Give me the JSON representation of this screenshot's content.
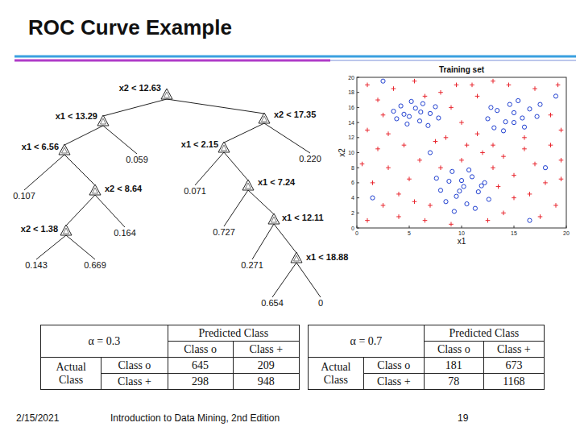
{
  "header": {
    "title": "ROC Curve Example"
  },
  "tree": {
    "split": "x2 < 12.63",
    "left": {
      "split": "x1 < 13.29",
      "left": {
        "split": "x1 < 6.56",
        "left": {
          "value": "0.107"
        },
        "right": {
          "split": "x2 < 8.64",
          "left": {
            "split": "x2 < 1.38",
            "left": {
              "value": "0.143"
            },
            "right": {
              "value": "0.669"
            }
          },
          "right": {
            "value": "0.164"
          }
        }
      },
      "right": {
        "value": "0.059"
      }
    },
    "right": {
      "split": "x2 < 17.35",
      "left": {
        "split": "x1 < 2.15",
        "left": {
          "value": "0.071"
        },
        "right": {
          "split": "x1 < 7.24",
          "left": {
            "value": "0.727"
          },
          "right": {
            "split": "x1 < 12.11",
            "left": {
              "value": "0.271"
            },
            "right": {
              "split": "x1 < 18.88",
              "left": {
                "value": "0.654"
              },
              "right": {
                "value": "0"
              }
            }
          }
        }
      },
      "right": {
        "value": "0.220"
      }
    }
  },
  "chart_data": {
    "type": "scatter",
    "title": "Training set",
    "x_label": "x1",
    "y_label": "x2",
    "xlim": [
      0,
      20
    ],
    "ylim": [
      0,
      20
    ],
    "xticks": [
      0,
      5,
      10,
      15,
      20
    ],
    "yticks": [
      0,
      2,
      4,
      6,
      8,
      10,
      12,
      14,
      16,
      18,
      20
    ],
    "series": [
      {
        "color": "#e8262e",
        "marker": "plus",
        "x": [
          1,
          2.5,
          4,
          5.5,
          6.5,
          1.5,
          3,
          5,
          6,
          2,
          4.5,
          1,
          2,
          1,
          3.5,
          5.5,
          8,
          9.5,
          9,
          10,
          8.5,
          10.5,
          11.5,
          12,
          13,
          14,
          15,
          16,
          17,
          18.5,
          19.5,
          18,
          19,
          17.5,
          15,
          14,
          13.5,
          16.5,
          19.5,
          18.5,
          19.2,
          17,
          13,
          11.5,
          11,
          3,
          7.5,
          8,
          4,
          2.5,
          12.5,
          7,
          0.5,
          6.5,
          10,
          13,
          16,
          19.5,
          9,
          14.5
        ],
        "y": [
          1,
          3,
          1.5,
          3.5,
          1,
          6,
          8,
          6.5,
          9,
          10.5,
          11,
          13,
          17,
          19,
          18.5,
          19.5,
          18,
          19,
          16,
          14,
          12,
          11,
          12.5,
          10,
          8,
          9.5,
          7,
          10.5,
          8.5,
          11,
          9,
          6,
          3,
          1.5,
          4,
          2,
          5.5,
          4.5,
          13,
          15,
          19,
          18.5,
          19.5,
          17.5,
          19,
          12.5,
          11.5,
          8,
          4.5,
          15,
          1,
          3,
          8.5,
          17.5,
          9,
          11,
          12,
          6.5,
          0.5,
          19
        ]
      },
      {
        "color": "#1f3fd0",
        "marker": "circle",
        "x": [
          3.5,
          4.2,
          5,
          5.6,
          6.3,
          7,
          7.8,
          4.8,
          6,
          3.8,
          5.2,
          6.8,
          7.5,
          4.5,
          6.1,
          12.5,
          13.4,
          14.2,
          15,
          15.8,
          16.5,
          14.6,
          13.1,
          16,
          17.2,
          14,
          15.4,
          12.8,
          17.5,
          15,
          8,
          8.8,
          9.5,
          10.2,
          11,
          11.6,
          10.5,
          9.1,
          12.2,
          8.5,
          10,
          11.3,
          9.8,
          12.6,
          10.7,
          9.3,
          11.9,
          7.6,
          19,
          1.5,
          18,
          2.5,
          7,
          16.5
        ],
        "y": [
          15.5,
          16.2,
          14.8,
          15.9,
          16.5,
          15.2,
          14.6,
          13.8,
          14.2,
          14.5,
          16.8,
          13.6,
          16.1,
          15.1,
          15.4,
          14.5,
          15.6,
          14.1,
          15.3,
          14.6,
          15.8,
          16.4,
          13.3,
          13.4,
          14.8,
          12.9,
          16.9,
          16,
          16.4,
          14,
          5,
          6.2,
          4.2,
          5.5,
          6.8,
          4.8,
          3.2,
          7.5,
          6,
          3.5,
          6.3,
          2.6,
          4.9,
          3.8,
          7.7,
          2.2,
          5.6,
          6.6,
          17.5,
          4,
          8,
          19.5,
          10,
          1
        ]
      }
    ]
  },
  "tables": [
    {
      "alpha": "α = 0.3",
      "predicted": "Predicted Class",
      "actual": [
        "Actual",
        "Class"
      ],
      "columns": [
        "Class o",
        "Class +"
      ],
      "rows": [
        "Class o",
        "Class +"
      ],
      "cells": [
        [
          645,
          209
        ],
        [
          298,
          948
        ]
      ]
    },
    {
      "alpha": "α = 0.7",
      "predicted": "Predicted Class",
      "actual": [
        "Actual",
        "Class"
      ],
      "columns": [
        "Class o",
        "Class +"
      ],
      "rows": [
        "Class o",
        "Class +"
      ],
      "cells": [
        [
          181,
          673
        ],
        [
          78,
          1168
        ]
      ]
    }
  ],
  "footer": {
    "date": "2/15/2021",
    "source": "Introduction to Data Mining, 2nd Edition",
    "page": 19
  }
}
